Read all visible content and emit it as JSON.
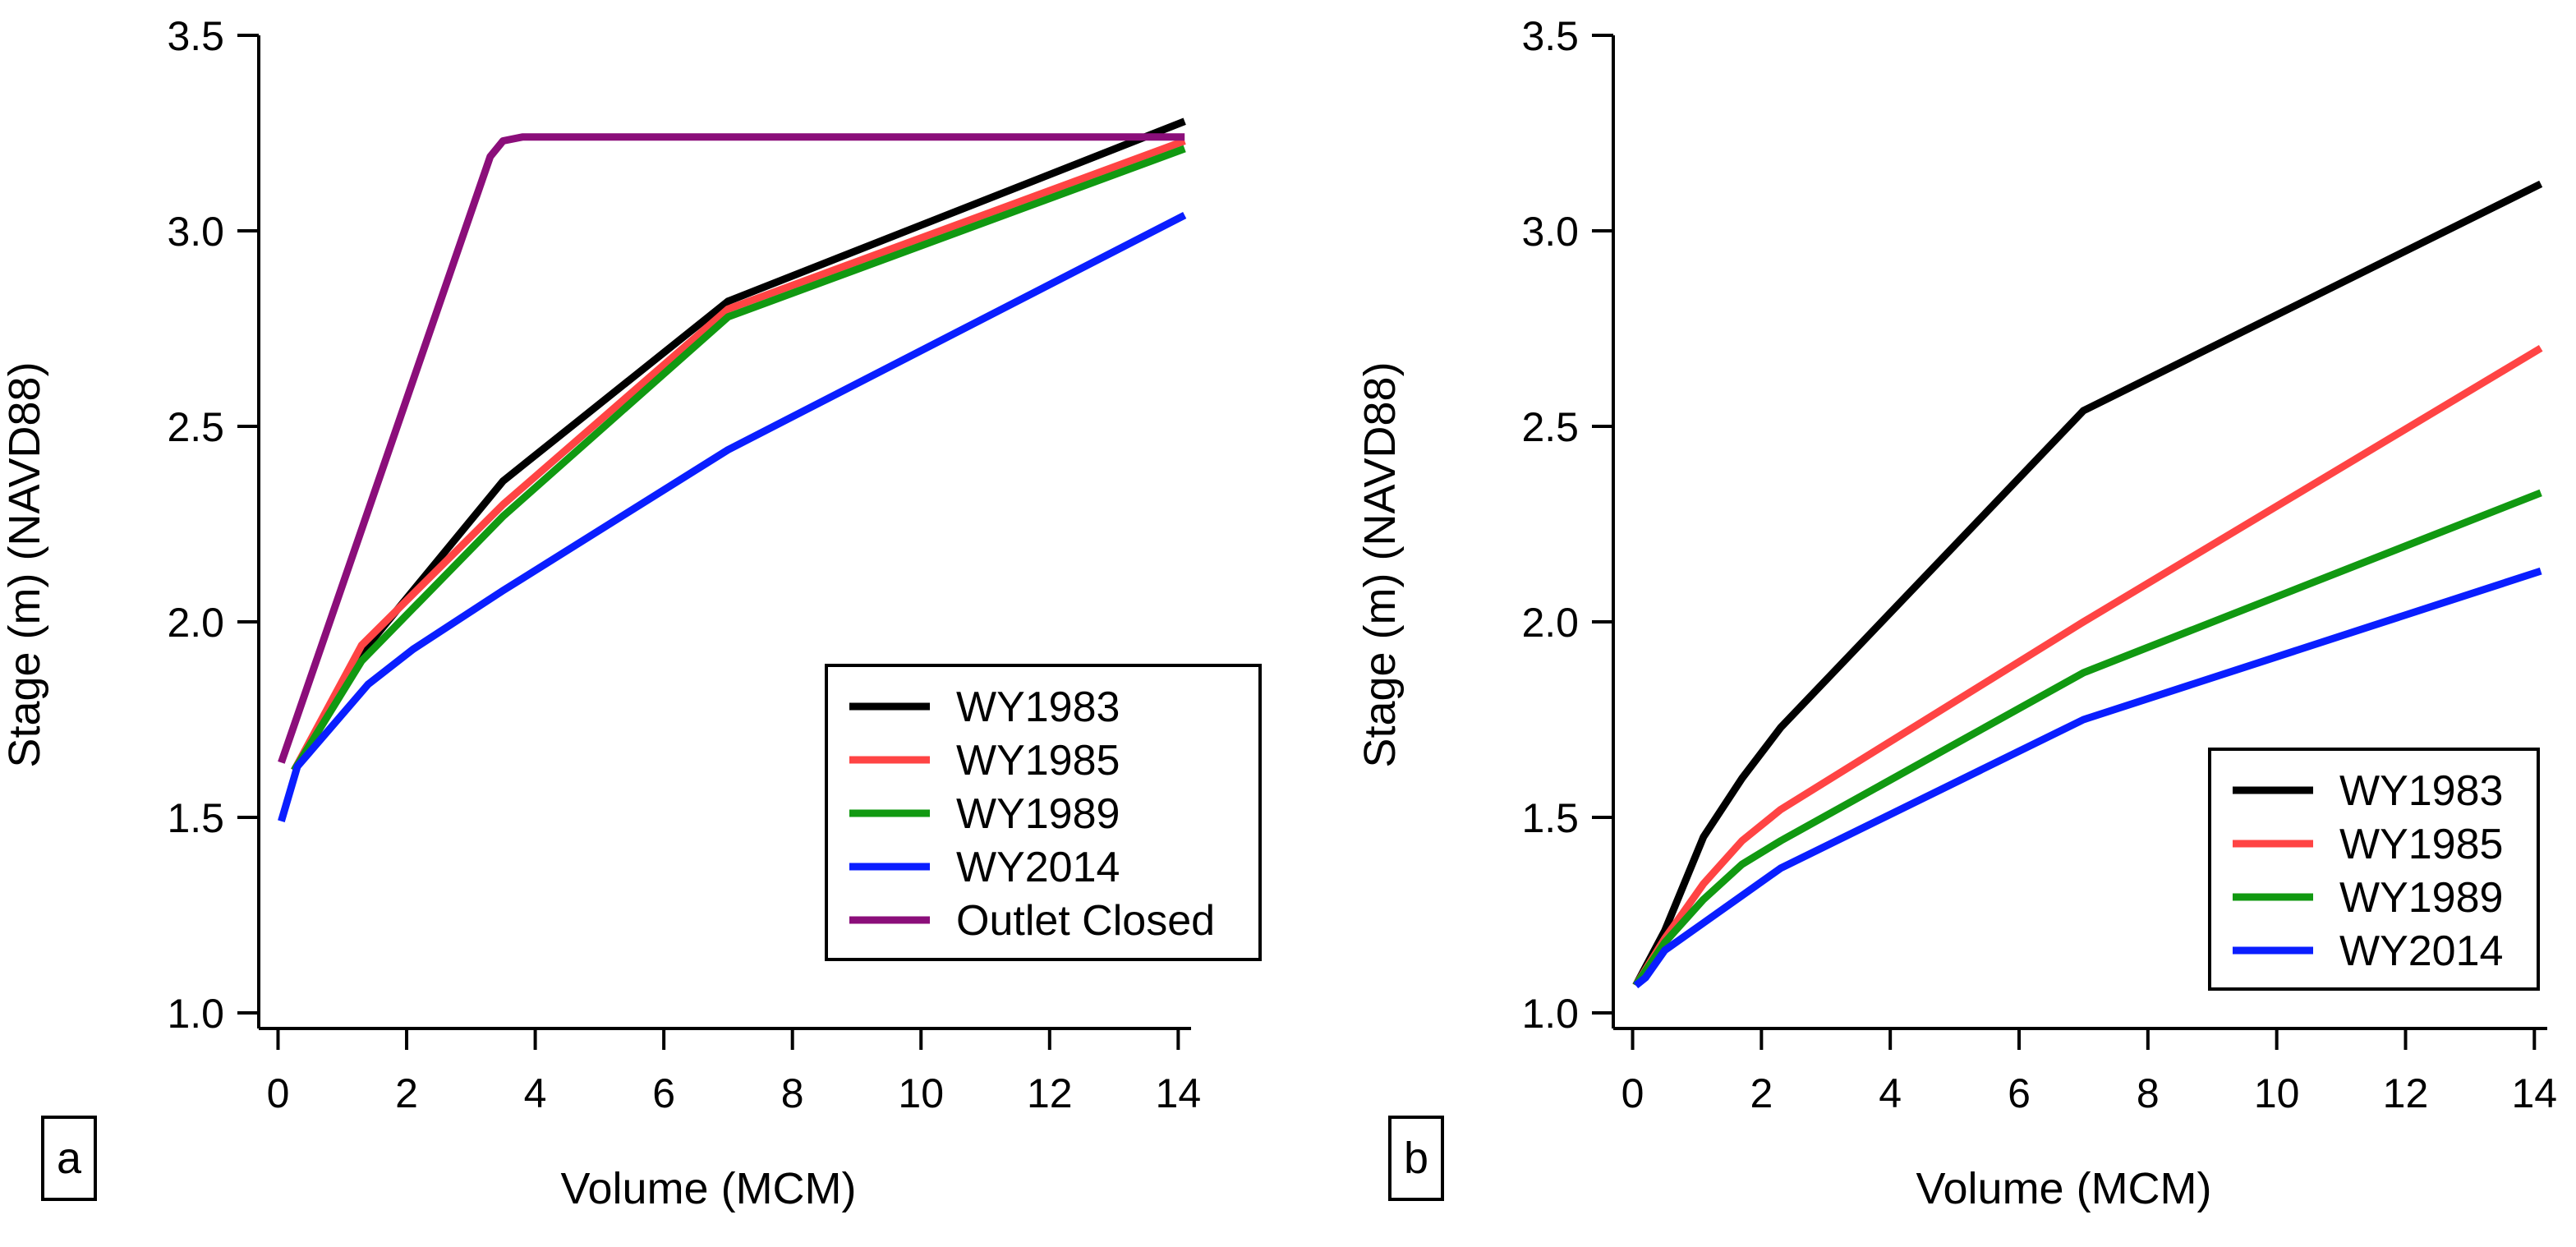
{
  "chart_data": [
    {
      "type": "line",
      "panel_label": "a",
      "xlabel": "Volume (MCM)",
      "ylabel": "Stage (m) (NAVD88)",
      "xlim": [
        -0.3,
        14.2
      ],
      "ylim": [
        0.96,
        3.5
      ],
      "xticks": [
        0,
        2,
        4,
        6,
        8,
        10,
        12,
        14
      ],
      "yticks": [
        1.0,
        1.5,
        2.0,
        2.5,
        3.0,
        3.5
      ],
      "xtick_labels": [
        "0",
        "2",
        "4",
        "6",
        "8",
        "10",
        "12",
        "14"
      ],
      "ytick_labels": [
        "1.0",
        "1.5",
        "2.0",
        "2.5",
        "3.0",
        "3.5"
      ],
      "legend_position": "lower-right",
      "series": [
        {
          "name": "WY1983",
          "color": "#000000",
          "x": [
            0.25,
            1.3,
            3.5,
            7.0,
            14.1
          ],
          "y": [
            1.62,
            1.92,
            2.36,
            2.82,
            3.28
          ]
        },
        {
          "name": "WY1985",
          "color": "#ff4444",
          "x": [
            0.25,
            1.3,
            3.5,
            7.0,
            14.1
          ],
          "y": [
            1.62,
            1.94,
            2.3,
            2.8,
            3.23
          ]
        },
        {
          "name": "WY1989",
          "color": "#119911",
          "x": [
            0.25,
            1.3,
            3.5,
            7.0,
            14.1
          ],
          "y": [
            1.62,
            1.9,
            2.27,
            2.78,
            3.21
          ]
        },
        {
          "name": "WY2014",
          "color": "#0a1eff",
          "x": [
            0.05,
            0.3,
            1.4,
            2.1,
            3.5,
            7.0,
            14.1
          ],
          "y": [
            1.49,
            1.63,
            1.84,
            1.93,
            2.08,
            2.44,
            3.04
          ]
        },
        {
          "name": "Outlet Closed",
          "color": "#8b0e7a",
          "x": [
            0.05,
            3.3,
            3.5,
            3.8,
            14.1
          ],
          "y": [
            1.64,
            3.19,
            3.23,
            3.24,
            3.24
          ]
        }
      ]
    },
    {
      "type": "line",
      "panel_label": "b",
      "xlabel": "Volume (MCM)",
      "ylabel": "Stage (m) (NAVD88)",
      "xlim": [
        -0.3,
        14.2
      ],
      "ylim": [
        0.96,
        3.5
      ],
      "xticks": [
        0,
        2,
        4,
        6,
        8,
        10,
        12,
        14
      ],
      "yticks": [
        1.0,
        1.5,
        2.0,
        2.5,
        3.0,
        3.5
      ],
      "xtick_labels": [
        "0",
        "2",
        "4",
        "6",
        "8",
        "10",
        "12",
        "14"
      ],
      "ytick_labels": [
        "1.0",
        "1.5",
        "2.0",
        "2.5",
        "3.0",
        "3.5"
      ],
      "legend_position": "lower-right",
      "series": [
        {
          "name": "WY1983",
          "color": "#000000",
          "x": [
            0.05,
            0.5,
            1.1,
            1.7,
            2.3,
            7.0,
            14.1
          ],
          "y": [
            1.07,
            1.21,
            1.45,
            1.6,
            1.73,
            2.54,
            3.12
          ]
        },
        {
          "name": "WY1985",
          "color": "#ff4444",
          "x": [
            0.05,
            0.5,
            1.1,
            1.7,
            2.3,
            7.0,
            14.1
          ],
          "y": [
            1.07,
            1.19,
            1.33,
            1.44,
            1.52,
            2.0,
            2.7
          ]
        },
        {
          "name": "WY1989",
          "color": "#119911",
          "x": [
            0.05,
            0.5,
            1.1,
            1.7,
            2.3,
            7.0,
            14.1
          ],
          "y": [
            1.07,
            1.18,
            1.29,
            1.38,
            1.44,
            1.87,
            2.33
          ]
        },
        {
          "name": "WY2014",
          "color": "#0a1eff",
          "x": [
            0.05,
            0.2,
            0.5,
            1.1,
            1.7,
            2.3,
            7.0,
            14.1
          ],
          "y": [
            1.07,
            1.09,
            1.16,
            1.23,
            1.3,
            1.37,
            1.75,
            2.13
          ]
        }
      ]
    }
  ]
}
